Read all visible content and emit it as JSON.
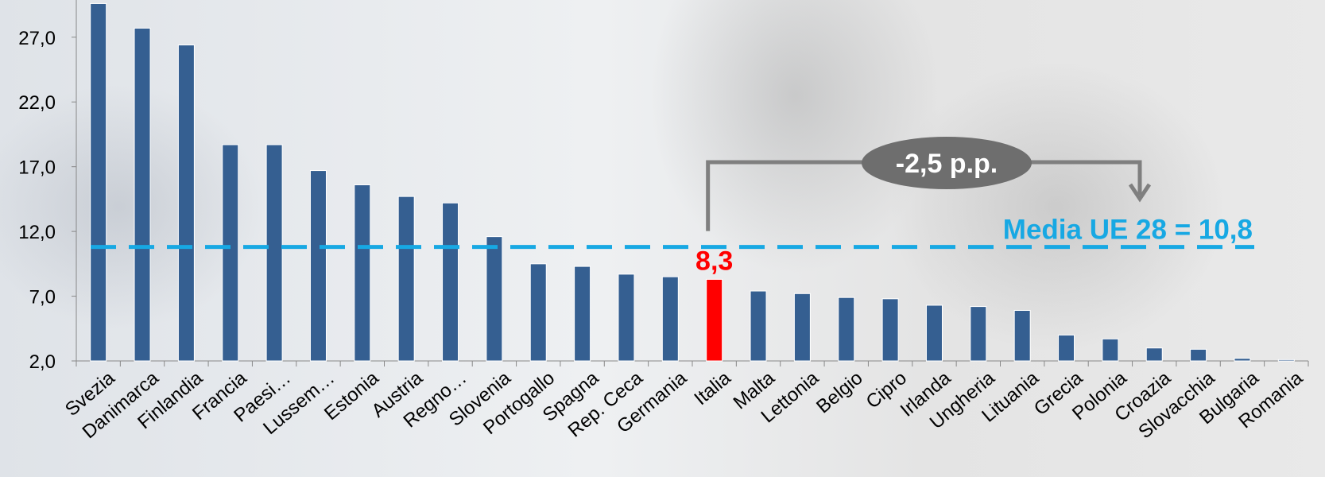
{
  "chart_data": {
    "type": "bar",
    "categories": [
      "Svezia",
      "Danimarca",
      "Finlandia",
      "Francia",
      "Paesi…",
      "Lussem…",
      "Estonia",
      "Austria",
      "Regno…",
      "Slovenia",
      "Portogallo",
      "Spagna",
      "Rep. Ceca",
      "Germania",
      "Italia",
      "Malta",
      "Lettonia",
      "Belgio",
      "Cipro",
      "Irlanda",
      "Ungheria",
      "Lituania",
      "Grecia",
      "Polonia",
      "Croazia",
      "Slovacchia",
      "Bulgaria",
      "Romania"
    ],
    "values": [
      29.6,
      27.7,
      26.4,
      18.7,
      18.7,
      16.7,
      15.6,
      14.7,
      14.2,
      11.6,
      9.5,
      9.3,
      8.7,
      8.5,
      8.3,
      7.4,
      7.2,
      6.9,
      6.8,
      6.3,
      6.2,
      5.9,
      4.0,
      3.7,
      3.0,
      2.9,
      2.2,
      2.1
    ],
    "highlight": "Italia",
    "highlight_label": "8,3",
    "yticks": [
      "2,0",
      "7,0",
      "12,0",
      "17,0",
      "22,0",
      "27,0"
    ],
    "ylim": [
      2.0,
      30.0
    ],
    "average": {
      "value": 10.8,
      "label": "Media UE 28 = 10,8"
    },
    "gap": {
      "label": "-2,5 p.p."
    },
    "colors": {
      "bar": "#355F91",
      "highlight": "#FF0000",
      "average_line": "#17A8E3",
      "average_text": "#17A8E3",
      "italy_text": "#FF0000",
      "gap_bracket": "#7F7F7F",
      "gap_ellipse": "#6E6E6E"
    }
  }
}
